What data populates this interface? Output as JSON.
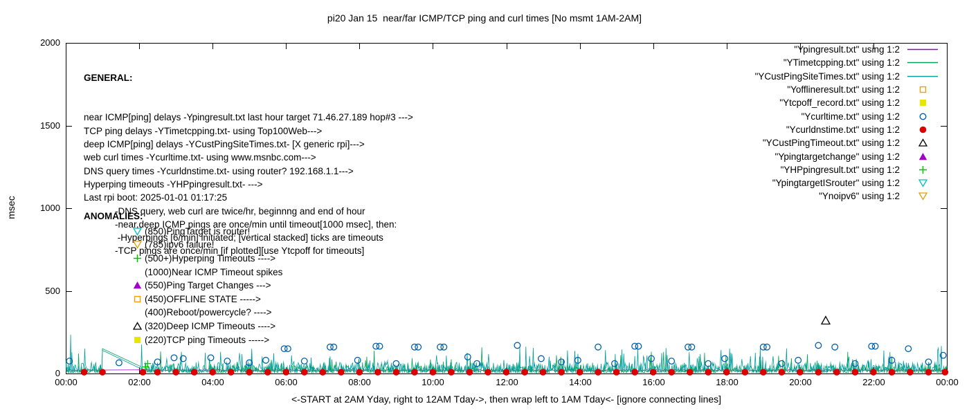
{
  "chart_data": {
    "type": "line",
    "title": "pi20 Jan 15  near/far ICMP/TCP ping and curl times [No msmt 1AM-2AM]",
    "xlabel": "<-START at 2AM Yday, right to 12AM Tday->, then wrap left to 1AM Tday<- [ignore connecting lines]",
    "ylabel": "msec",
    "xlim": [
      0,
      24
    ],
    "ylim": [
      0,
      2000
    ],
    "yticks": [
      0,
      500,
      1000,
      1500,
      2000
    ],
    "xticks": {
      "hours": [
        0,
        2,
        4,
        6,
        8,
        10,
        12,
        14,
        16,
        18,
        20,
        22,
        24
      ],
      "labels": [
        "00:00",
        "02:00",
        "04:00",
        "06:00",
        "08:00",
        "10:00",
        "12:00",
        "14:00",
        "16:00",
        "18:00",
        "20:00",
        "22:00",
        "00:00"
      ]
    },
    "grid": false,
    "legend_position": "top-right",
    "legend": [
      {
        "label": "\"Ypingresult.txt\" using 1:2",
        "marker": "line",
        "color": "#9400d3"
      },
      {
        "label": "\"YTimetcpping.txt\" using 1:2",
        "marker": "line",
        "color": "#00a352"
      },
      {
        "label": "\"YCustPingSiteTimes.txt\" using 1:2",
        "marker": "line",
        "color": "#009e9e"
      },
      {
        "label": "\"Yofflineresult.txt\" using 1:2",
        "marker": "square-open",
        "color": "#f0a000"
      },
      {
        "label": "\"Ytcpoff_record.txt\" using 1:2",
        "marker": "square-filled",
        "color": "#e6e600"
      },
      {
        "label": "\"Ycurltime.txt\" using 1:2",
        "marker": "circle-open",
        "color": "#0060ad"
      },
      {
        "label": "\"Ycurldnstime.txt\" using 1:2",
        "marker": "circle-filled",
        "color": "#dd0000"
      },
      {
        "label": "\"YCustPingTimeout.txt\" using 1:2",
        "marker": "triangle-up-open",
        "color": "#000000"
      },
      {
        "label": "\"Ypingtargetchange\" using 1:2",
        "marker": "triangle-up-filled",
        "color": "#a000c8"
      },
      {
        "label": "\"YHPpingresult.txt\" using 1:2",
        "marker": "plus",
        "color": "#00c000"
      },
      {
        "label": "\"YpingtargetISrouter\" using 1:2",
        "marker": "triangle-down-open",
        "color": "#00bfbf"
      },
      {
        "label": "\"Ynoipv6\" using 1:2",
        "marker": "triangle-down-open",
        "color": "#e69f00"
      }
    ],
    "noisy_series": [
      {
        "name": "Ypingresult",
        "color": "#9400d3",
        "base": 17,
        "amp": 6,
        "pow": 1.0,
        "spike_p": 0.0,
        "spike_amp": 0,
        "seed": 5,
        "gap": [
          1.01,
          2.05
        ],
        "forced": []
      },
      {
        "name": "YTimetcpping",
        "color": "#00a352",
        "base": 6,
        "amp": 45,
        "pow": 2.2,
        "spike_p": 0.05,
        "spike_amp": 110,
        "seed": 77,
        "gap": [
          1.01,
          2.05
        ],
        "forced": [
          [
            1.0,
            150
          ]
        ]
      },
      {
        "name": "YCustPingSiteTimes",
        "color": "#009e9e",
        "base": 8,
        "amp": 60,
        "pow": 1.8,
        "spike_p": 0.08,
        "spike_amp": 130,
        "seed": 42,
        "gap": [
          1.01,
          2.05
        ],
        "forced": [
          [
            0.13,
            235
          ],
          [
            1.0,
            140
          ]
        ]
      }
    ],
    "point_series": [
      {
        "name": "Ycurltime",
        "marker": "circle-open",
        "color": "#0060ad",
        "points": [
          [
            0.1,
            75
          ],
          [
            1.45,
            65
          ],
          [
            2.5,
            70
          ],
          [
            2.95,
            95
          ],
          [
            3.2,
            90
          ],
          [
            3.95,
            95
          ],
          [
            4.4,
            75
          ],
          [
            5.0,
            65
          ],
          [
            5.45,
            80
          ],
          [
            5.95,
            150
          ],
          [
            6.05,
            150
          ],
          [
            6.5,
            75
          ],
          [
            7.2,
            160
          ],
          [
            7.3,
            160
          ],
          [
            7.95,
            80
          ],
          [
            8.45,
            165
          ],
          [
            8.55,
            165
          ],
          [
            9.0,
            60
          ],
          [
            9.5,
            160
          ],
          [
            9.6,
            160
          ],
          [
            10.2,
            160
          ],
          [
            10.3,
            160
          ],
          [
            10.95,
            100
          ],
          [
            11.2,
            60
          ],
          [
            12.3,
            170
          ],
          [
            12.95,
            90
          ],
          [
            13.5,
            70
          ],
          [
            13.95,
            80
          ],
          [
            14.5,
            160
          ],
          [
            14.95,
            60
          ],
          [
            15.5,
            165
          ],
          [
            15.6,
            165
          ],
          [
            15.95,
            90
          ],
          [
            16.5,
            75
          ],
          [
            16.95,
            160
          ],
          [
            17.05,
            160
          ],
          [
            17.5,
            60
          ],
          [
            17.95,
            90
          ],
          [
            19.0,
            160
          ],
          [
            19.1,
            160
          ],
          [
            19.5,
            60
          ],
          [
            19.95,
            80
          ],
          [
            20.5,
            170
          ],
          [
            20.95,
            160
          ],
          [
            21.5,
            60
          ],
          [
            21.95,
            165
          ],
          [
            22.05,
            165
          ],
          [
            22.5,
            80
          ],
          [
            22.95,
            150
          ],
          [
            23.5,
            70
          ],
          [
            23.9,
            110
          ]
        ]
      },
      {
        "name": "Ycurldnstime",
        "marker": "circle-filled",
        "color": "#dd0000",
        "points": [
          [
            0.5,
            8
          ],
          [
            1.0,
            8
          ],
          [
            2.1,
            8
          ],
          [
            2.5,
            8
          ],
          [
            3.0,
            8
          ],
          [
            3.5,
            8
          ],
          [
            4.0,
            8
          ],
          [
            4.5,
            8
          ],
          [
            5.0,
            8
          ],
          [
            5.5,
            8
          ],
          [
            6.0,
            8
          ],
          [
            6.5,
            8
          ],
          [
            7.0,
            8
          ],
          [
            7.5,
            8
          ],
          [
            8.0,
            8
          ],
          [
            8.5,
            8
          ],
          [
            9.0,
            8
          ],
          [
            9.5,
            8
          ],
          [
            10.0,
            8
          ],
          [
            10.5,
            8
          ],
          [
            11.0,
            8
          ],
          [
            11.5,
            8
          ],
          [
            12.0,
            8
          ],
          [
            12.5,
            8
          ],
          [
            13.0,
            8
          ],
          [
            13.5,
            8
          ],
          [
            14.0,
            8
          ],
          [
            14.5,
            8
          ],
          [
            15.0,
            8
          ],
          [
            15.5,
            8
          ],
          [
            16.0,
            8
          ],
          [
            16.5,
            8
          ],
          [
            17.0,
            8
          ],
          [
            17.5,
            8
          ],
          [
            18.0,
            8
          ],
          [
            18.5,
            8
          ],
          [
            19.0,
            8
          ],
          [
            19.5,
            8
          ],
          [
            20.0,
            8
          ],
          [
            20.5,
            8
          ],
          [
            21.0,
            8
          ],
          [
            21.5,
            8
          ],
          [
            22.0,
            8
          ],
          [
            22.5,
            8
          ],
          [
            23.0,
            8
          ],
          [
            23.5,
            8
          ],
          [
            23.95,
            8
          ]
        ]
      },
      {
        "name": "YCustPingTimeout",
        "marker": "triangle-up-open",
        "color": "#000000",
        "points": [
          [
            20.7,
            320
          ]
        ]
      },
      {
        "name": "YHPpingresult",
        "marker": "plus",
        "color": "#00c000",
        "points": [
          [
            2.18,
            40
          ],
          [
            2.23,
            60
          ]
        ]
      }
    ]
  },
  "general": {
    "heading": "GENERAL:",
    "lines": [
      "near ICMP[ping] delays -Ypingresult.txt last hour target 71.46.27.189 hop#3 --->",
      "TCP ping delays -YTimetcpping.txt- using Top100Web--->",
      "deep ICMP[ping] delays -YCustPingSiteTimes.txt- [X generic rpi]--->",
      "web curl times -Ycurltime.txt- using www.msnbc.com--->",
      "DNS query times -Ycurldnstime.txt- using router? 192.168.1.1--->",
      "Hyperping timeouts -YHPpingresult.txt- --->",
      "Last rpi boot: 2025-01-01 01:17:25",
      "            -DNS query, web curl are twice/hr, beginnng and end of hour",
      "            -near,deep ICMP pings are once/min until timeout[1000 msec], then:",
      "             -Hyperpings [6/min] initiated; [vertical stacked] ticks are timeouts",
      "            -TCP pings are once/min [if plotted][use Ytcpoff for timeouts]"
    ]
  },
  "anomalies": {
    "heading": "ANOMALIES:",
    "items": [
      {
        "marker": "triangle-down-open",
        "color": "#00bfbf",
        "text": "(850)PingTarget is router!"
      },
      {
        "marker": "triangle-down-open",
        "color": "#e69f00",
        "text": "(785)ipv6 failure!"
      },
      {
        "marker": "plus",
        "color": "#00c000",
        "text": "(500+)Hyperping Timeouts ---->"
      },
      {
        "marker": null,
        "color": null,
        "text": "(1000)Near ICMP Timeout spikes"
      },
      {
        "marker": "triangle-up-filled",
        "color": "#a000c8",
        "text": "(550)Ping Target Changes --->"
      },
      {
        "marker": "square-open",
        "color": "#f0a000",
        "text": "(450)OFFLINE STATE ----->"
      },
      {
        "marker": null,
        "color": null,
        "text": "(400)Reboot/powercycle? ---->"
      },
      {
        "marker": "triangle-up-open",
        "color": "#000000",
        "text": "(320)Deep ICMP Timeouts ---->"
      },
      {
        "marker": "square-filled",
        "color": "#e6e600",
        "text": "(220)TCP ping Timeouts ----->"
      }
    ]
  }
}
